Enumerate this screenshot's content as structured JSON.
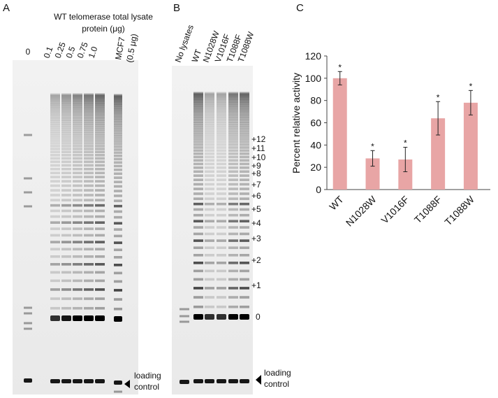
{
  "panel_a": {
    "label": "A",
    "title": [
      "WT telomerase total lysate",
      "protein (μg)"
    ],
    "lanes": [
      "0",
      "0.1",
      "0.25",
      "0.5",
      "0.75",
      "1.0",
      "MCF7"
    ],
    "mcf7_note": "(0.5 μg)",
    "marker": [
      "loading",
      "control"
    ]
  },
  "panel_b": {
    "label": "B",
    "lanes": [
      "No lysates",
      "WT",
      "N1028W",
      "V1016F",
      "T1088F",
      "T1088W"
    ],
    "band_labels": [
      "+12",
      "+11",
      "+10",
      "+9",
      "+8",
      "+7",
      "+6",
      "+5",
      "+4",
      "+3",
      "+2",
      "+1",
      "0"
    ],
    "marker": [
      "loading",
      "control"
    ]
  },
  "chart_data": {
    "type": "bar",
    "panel_label": "C",
    "ylabel": "Percent relative activity",
    "categories": [
      "WT",
      "N1028W",
      "V1016F",
      "T1088F",
      "T1088W"
    ],
    "values": [
      100,
      28,
      27,
      64,
      78
    ],
    "errors": [
      6,
      7,
      11,
      15,
      11
    ],
    "significance": [
      "*",
      "*",
      "*",
      "*",
      "*"
    ],
    "color": "#e8a5a5",
    "ylim": [
      0,
      120
    ],
    "yticks": [
      0,
      20,
      40,
      60,
      80,
      100,
      120
    ]
  }
}
